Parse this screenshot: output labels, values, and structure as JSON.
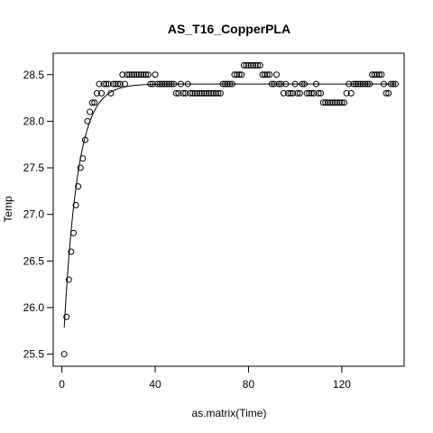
{
  "chart_data": {
    "type": "scatter",
    "title": "AS_T16_CopperPLA",
    "xlabel": "as.matrix(Time)",
    "ylabel": "Temp",
    "xlim": [
      -3.7,
      146.7
    ],
    "ylim": [
      25.37,
      28.73
    ],
    "x_ticks": [
      0,
      40,
      80,
      120
    ],
    "y_ticks": [
      25.5,
      26.0,
      26.5,
      27.0,
      27.5,
      28.0,
      28.5
    ],
    "y_tick_labels": [
      "25.5",
      "26.0",
      "26.5",
      "27.0",
      "27.5",
      "28.0",
      "28.5"
    ],
    "grid": false,
    "legend": "none",
    "point_color": "#000000",
    "curve_color": "#000000",
    "fit_curve": {
      "model": "exponential",
      "asymptote": 28.4,
      "start_value": 25.3,
      "rate": 0.17
    },
    "series": [
      {
        "x": [
          1,
          2,
          3,
          4,
          5,
          6,
          7,
          8,
          9,
          10,
          11,
          12,
          13,
          14,
          15,
          16,
          17,
          18,
          19,
          20,
          21,
          22,
          23,
          24,
          25,
          26,
          27,
          28,
          29,
          30,
          31,
          32,
          33,
          34,
          35,
          36,
          37,
          38,
          39,
          40,
          41,
          42,
          43,
          44,
          45,
          46,
          47,
          48,
          49,
          50,
          51,
          52,
          53,
          54,
          55,
          56,
          57,
          58,
          59,
          60,
          61,
          62,
          63,
          64,
          65,
          66,
          67,
          68,
          69,
          70,
          71,
          72,
          73,
          74,
          75,
          76,
          77,
          78,
          79,
          80,
          81,
          82,
          83,
          84,
          85,
          86,
          87,
          88,
          89,
          90,
          91,
          92,
          93,
          94,
          95,
          96,
          97,
          98,
          99,
          100,
          101,
          102,
          103,
          104,
          105,
          106,
          107,
          108,
          109,
          110,
          111,
          112,
          113,
          114,
          115,
          116,
          117,
          118,
          119,
          120,
          121,
          122,
          123,
          124,
          125,
          126,
          127,
          128,
          129,
          130,
          131,
          132,
          133,
          134,
          135,
          136,
          137,
          138,
          139,
          140,
          141,
          142,
          143
        ],
        "y": [
          25.5,
          25.9,
          26.3,
          26.6,
          26.8,
          27.1,
          27.3,
          27.5,
          27.6,
          27.8,
          28.0,
          28.1,
          28.2,
          28.2,
          28.3,
          28.4,
          28.3,
          28.4,
          28.4,
          28.4,
          28.3,
          28.4,
          28.4,
          28.4,
          28.4,
          28.5,
          28.4,
          28.5,
          28.5,
          28.5,
          28.5,
          28.5,
          28.5,
          28.5,
          28.5,
          28.5,
          28.5,
          28.4,
          28.4,
          28.5,
          28.4,
          28.4,
          28.4,
          28.4,
          28.4,
          28.4,
          28.4,
          28.4,
          28.3,
          28.3,
          28.4,
          28.3,
          28.3,
          28.4,
          28.3,
          28.3,
          28.3,
          28.3,
          28.3,
          28.3,
          28.3,
          28.3,
          28.3,
          28.3,
          28.3,
          28.3,
          28.3,
          28.3,
          28.4,
          28.4,
          28.4,
          28.4,
          28.4,
          28.5,
          28.5,
          28.5,
          28.5,
          28.6,
          28.6,
          28.6,
          28.6,
          28.6,
          28.6,
          28.6,
          28.6,
          28.5,
          28.5,
          28.5,
          28.5,
          28.4,
          28.4,
          28.5,
          28.4,
          28.4,
          28.3,
          28.4,
          28.3,
          28.3,
          28.3,
          28.4,
          28.3,
          28.3,
          28.4,
          28.4,
          28.3,
          28.3,
          28.3,
          28.3,
          28.4,
          28.3,
          28.3,
          28.2,
          28.2,
          28.2,
          28.2,
          28.2,
          28.2,
          28.2,
          28.2,
          28.2,
          28.2,
          28.3,
          28.4,
          28.3,
          28.4,
          28.4,
          28.4,
          28.4,
          28.4,
          28.4,
          28.4,
          28.4,
          28.5,
          28.5,
          28.5,
          28.5,
          28.5,
          28.4,
          28.3,
          28.3,
          28.4,
          28.4,
          28.4
        ]
      }
    ]
  }
}
